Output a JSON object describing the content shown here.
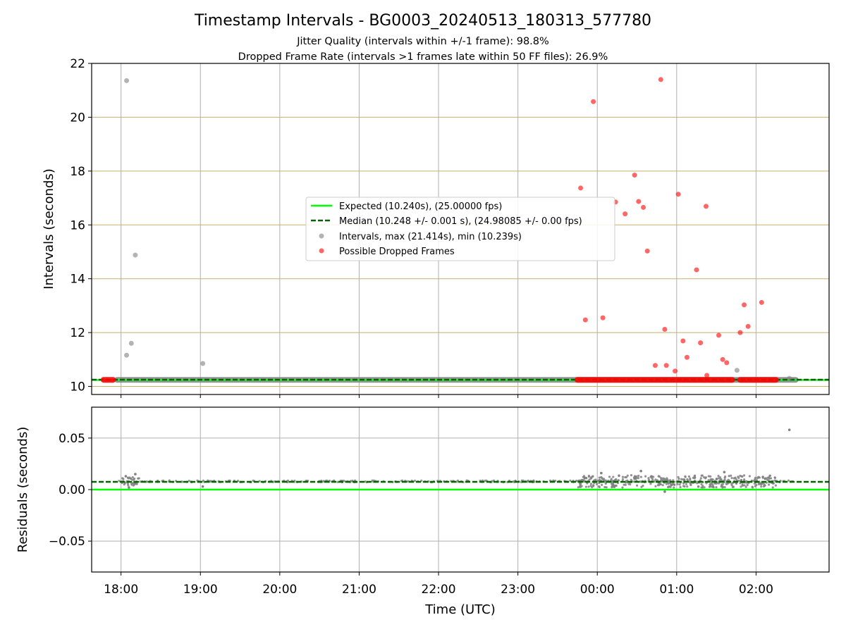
{
  "chart_data": [
    {
      "type": "scatter",
      "title": "Timestamp Intervals - BG0003_20240513_180313_577780",
      "subtitle_lines": [
        "Jitter Quality (intervals within +/-1 frame): 98.8%",
        "Dropped Frame Rate (intervals >1 frames late within 50 FF files): 26.9%"
      ],
      "xlabel": "",
      "ylabel": "Intervals (seconds)",
      "x_unit": "hours since 00:00 UTC (axis spans 17:38 – 02:55)",
      "xlim": [
        -6.37,
        2.92
      ],
      "ylim": [
        9.7,
        22.0
      ],
      "x_ticks": [
        "18:00",
        "19:00",
        "20:00",
        "21:00",
        "22:00",
        "23:00",
        "00:00",
        "01:00",
        "02:00"
      ],
      "x_tick_values": [
        -6,
        -5,
        -4,
        -3,
        -2,
        -1,
        0,
        1,
        2
      ],
      "y_ticks": [
        "10",
        "12",
        "14",
        "16",
        "18",
        "20",
        "22"
      ],
      "y_tick_values": [
        10,
        12,
        14,
        16,
        18,
        20,
        22
      ],
      "grid": "vertical grey at x ticks, horizontal tan at y ticks",
      "legend_position": "center",
      "legend": [
        "Expected (10.240s), (25.00000 fps)",
        "Median (10.248 +/- 0.001 s), (24.98085 +/- 0.00 fps)",
        "Intervals, max (21.414s), min (10.239s)",
        "Possible Dropped Frames"
      ],
      "colors": {
        "expected": "#00ff00",
        "median": "#006400",
        "intervals": "#808080",
        "dropped": "#ff0000",
        "grid_vertical": "#b0b0b0",
        "grid_horizontal": "#c8b06a"
      },
      "expected_line": 10.24,
      "median_line": 10.248,
      "baseline_segments": [
        [
          -6.05,
          2.5
        ]
      ],
      "dropped_baseline_segments": [
        [
          -6.22,
          -6.1
        ],
        [
          -0.25,
          1.7
        ],
        [
          1.8,
          2.25
        ]
      ],
      "series": [
        {
          "name": "Intervals, max (21.414s), min (10.239s)",
          "points": [
            [
              -5.93,
              21.36
            ],
            [
              -5.93,
              11.16
            ],
            [
              -5.87,
              11.6
            ],
            [
              -5.82,
              14.88
            ],
            [
              -4.97,
              10.85
            ],
            [
              1.76,
              10.6
            ],
            [
              2.42,
              10.3
            ]
          ]
        },
        {
          "name": "Possible Dropped Frames",
          "points": [
            [
              -0.21,
              17.37
            ],
            [
              -0.15,
              12.47
            ],
            [
              -0.05,
              20.58
            ],
            [
              0.07,
              12.55
            ],
            [
              0.23,
              16.85
            ],
            [
              0.35,
              16.41
            ],
            [
              0.47,
              17.85
            ],
            [
              0.52,
              16.87
            ],
            [
              0.58,
              16.65
            ],
            [
              0.63,
              15.03
            ],
            [
              0.73,
              10.78
            ],
            [
              0.8,
              21.4
            ],
            [
              0.85,
              12.12
            ],
            [
              0.87,
              10.78
            ],
            [
              0.98,
              10.57
            ],
            [
              1.02,
              17.14
            ],
            [
              1.08,
              11.69
            ],
            [
              1.13,
              11.08
            ],
            [
              1.25,
              14.33
            ],
            [
              1.3,
              11.62
            ],
            [
              1.37,
              16.69
            ],
            [
              1.38,
              10.41
            ],
            [
              1.53,
              11.9
            ],
            [
              1.58,
              11.0
            ],
            [
              1.63,
              10.88
            ],
            [
              1.8,
              12.0
            ],
            [
              1.85,
              13.03
            ],
            [
              1.9,
              12.23
            ],
            [
              2.07,
              13.12
            ]
          ]
        }
      ]
    },
    {
      "type": "scatter",
      "xlabel": "Time (UTC)",
      "ylabel": "Residuals (seconds)",
      "x_unit": "hours since 00:00 UTC (axis spans 17:38 – 02:55)",
      "xlim": [
        -6.37,
        2.92
      ],
      "ylim": [
        -0.08,
        0.08
      ],
      "x_ticks": [
        "18:00",
        "19:00",
        "20:00",
        "21:00",
        "22:00",
        "23:00",
        "00:00",
        "01:00",
        "02:00"
      ],
      "x_tick_values": [
        -6,
        -5,
        -4,
        -3,
        -2,
        -1,
        0,
        1,
        2
      ],
      "y_ticks": [
        "−0.05",
        "0.00",
        "0.05"
      ],
      "y_tick_values": [
        -0.05,
        0.0,
        0.05
      ],
      "grid": "grey at x ticks and y ticks",
      "expected_line": 0.0,
      "median_line": 0.0075,
      "residual_typical": 0.008,
      "residual_scatter_ranges": [
        {
          "x": [
            -6.03,
            -5.75
          ],
          "spread": 0.004
        },
        {
          "x": [
            -5.75,
            2.5
          ],
          "spread": 0.0008
        },
        {
          "x": [
            -0.25,
            2.25
          ],
          "spread": 0.006
        }
      ],
      "series": [
        {
          "name": "",
          "points": [
            [
              -5.82,
              0.015
            ],
            [
              -5.94,
              0.013
            ],
            [
              -5.9,
              0.002
            ],
            [
              -4.97,
              0.003
            ],
            [
              0.05,
              0.016
            ],
            [
              0.55,
              0.018
            ],
            [
              0.85,
              -0.002
            ],
            [
              1.6,
              0.017
            ],
            [
              2.42,
              0.058
            ]
          ]
        }
      ]
    }
  ]
}
